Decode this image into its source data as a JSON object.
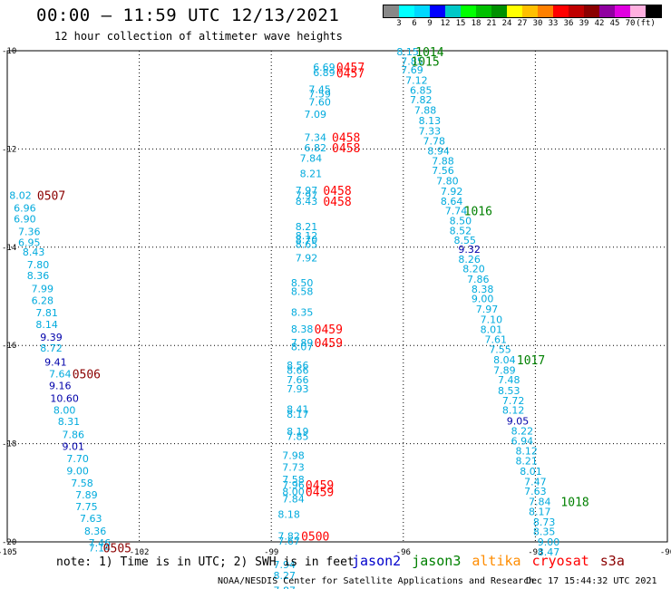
{
  "header": {
    "title": "00:00 – 11:59 UTC 12/13/2021",
    "subtitle": "12 hour collection of altimeter wave heights"
  },
  "colorbar": {
    "colors": [
      "#888888",
      "#00ffff",
      "#00d8ff",
      "#0000ff",
      "#00c8c8",
      "#00ff00",
      "#00c000",
      "#009000",
      "#ffff00",
      "#ffc000",
      "#ff8000",
      "#ff0000",
      "#c00000",
      "#8b0000",
      "#9000a0",
      "#e000e0",
      "#ffb0e0",
      "#000000"
    ],
    "labels": [
      "3",
      "6",
      "9",
      "12",
      "15",
      "18",
      "21",
      "24",
      "27",
      "30",
      "33",
      "36",
      "39",
      "42",
      "45",
      "70",
      "(ft)"
    ]
  },
  "footer": {
    "note": "note: 1) Time is in UTC; 2) SWH is in feet",
    "missions": [
      {
        "name": "jason2",
        "color": "#0000cc"
      },
      {
        "name": "jason3",
        "color": "#008000"
      },
      {
        "name": "altika",
        "color": "#ff8c00"
      },
      {
        "name": "cryosat",
        "color": "#ff0000"
      },
      {
        "name": "s3a",
        "color": "#8b0000"
      }
    ],
    "credit": "NOAA/NESDIS Center for Satellite Applications and Research",
    "timestamp": "Dec 17 15:44:32 UTC 2021"
  },
  "chart_data": {
    "type": "scatter",
    "xlim": [
      -105,
      -90
    ],
    "ylim": [
      -20,
      -10
    ],
    "xticks": [
      "-105",
      "-102",
      "-99",
      "-96",
      "-93",
      "-90"
    ],
    "yticks": [
      "-10",
      "-12",
      "-14",
      "-16",
      "-18",
      "-20"
    ],
    "grid": true,
    "value_colors": {
      "default": "#00aadd",
      "dark_blue": "#0000aa",
      "time_cryosat": "#ff0000",
      "time_jason3": "#008000",
      "time_s3a": "#8b0000"
    },
    "points": [
      {
        "lon": -104.7,
        "lat": -12.94,
        "v": "8.02",
        "c": "default"
      },
      {
        "lon": -104.6,
        "lat": -13.2,
        "v": "6.96",
        "c": "default"
      },
      {
        "lon": -104.6,
        "lat": -13.42,
        "v": "6.90",
        "c": "default"
      },
      {
        "lon": -104.5,
        "lat": -13.68,
        "v": "7.36",
        "c": "default"
      },
      {
        "lon": -104.5,
        "lat": -13.9,
        "v": "6.95",
        "c": "default"
      },
      {
        "lon": -104.4,
        "lat": -14.1,
        "v": "8.43",
        "c": "default"
      },
      {
        "lon": -104.3,
        "lat": -14.35,
        "v": "7.80",
        "c": "default"
      },
      {
        "lon": -104.3,
        "lat": -14.58,
        "v": "8.36",
        "c": "default"
      },
      {
        "lon": -104.2,
        "lat": -14.84,
        "v": "7.99",
        "c": "default"
      },
      {
        "lon": -104.2,
        "lat": -15.08,
        "v": "6.28",
        "c": "default"
      },
      {
        "lon": -104.1,
        "lat": -15.33,
        "v": "7.81",
        "c": "default"
      },
      {
        "lon": -104.1,
        "lat": -15.57,
        "v": "8.14",
        "c": "default"
      },
      {
        "lon": -104.0,
        "lat": -15.83,
        "v": "9.39",
        "c": "dark_blue"
      },
      {
        "lon": -104.0,
        "lat": -16.05,
        "v": "8.72",
        "c": "default"
      },
      {
        "lon": -103.9,
        "lat": -16.34,
        "v": "9.41",
        "c": "dark_blue"
      },
      {
        "lon": -103.8,
        "lat": -16.58,
        "v": "7.64",
        "c": "default"
      },
      {
        "lon": -103.8,
        "lat": -16.82,
        "v": "9.16",
        "c": "dark_blue"
      },
      {
        "lon": -103.7,
        "lat": -17.08,
        "v": "10.60",
        "c": "dark_blue"
      },
      {
        "lon": -103.7,
        "lat": -17.32,
        "v": "8.00",
        "c": "default"
      },
      {
        "lon": -103.6,
        "lat": -17.55,
        "v": "8.31",
        "c": "default"
      },
      {
        "lon": -103.5,
        "lat": -17.81,
        "v": "7.86",
        "c": "default"
      },
      {
        "lon": -103.5,
        "lat": -18.05,
        "v": "9.01",
        "c": "dark_blue"
      },
      {
        "lon": -103.4,
        "lat": -18.3,
        "v": "7.70",
        "c": "default"
      },
      {
        "lon": -103.4,
        "lat": -18.55,
        "v": "9.00",
        "c": "default"
      },
      {
        "lon": -103.3,
        "lat": -18.8,
        "v": "7.58",
        "c": "default"
      },
      {
        "lon": -103.2,
        "lat": -19.04,
        "v": "7.89",
        "c": "default"
      },
      {
        "lon": -103.2,
        "lat": -19.28,
        "v": "7.75",
        "c": "default"
      },
      {
        "lon": -103.1,
        "lat": -19.52,
        "v": "7.63",
        "c": "default"
      },
      {
        "lon": -103.0,
        "lat": -19.78,
        "v": "8.36",
        "c": "default"
      },
      {
        "lon": -102.9,
        "lat": -20.02,
        "v": "7.46",
        "c": "default"
      },
      {
        "lon": -102.9,
        "lat": -20.12,
        "v": "7.14",
        "c": "default"
      },
      {
        "lon": -97.8,
        "lat": -10.33,
        "v": "6.69",
        "c": "default"
      },
      {
        "lon": -97.8,
        "lat": -10.44,
        "v": "6.89",
        "c": "default"
      },
      {
        "lon": -97.9,
        "lat": -10.78,
        "v": "7.45",
        "c": "default"
      },
      {
        "lon": -97.9,
        "lat": -10.88,
        "v": "7.59",
        "c": "default"
      },
      {
        "lon": -97.9,
        "lat": -11.04,
        "v": "7.60",
        "c": "default"
      },
      {
        "lon": -98.0,
        "lat": -11.29,
        "v": "7.09",
        "c": "default"
      },
      {
        "lon": -98.0,
        "lat": -11.76,
        "v": "7.34",
        "c": "default"
      },
      {
        "lon": -98.0,
        "lat": -11.97,
        "v": "6.82",
        "c": "default"
      },
      {
        "lon": -98.1,
        "lat": -12.19,
        "v": "7.84",
        "c": "default"
      },
      {
        "lon": -98.1,
        "lat": -12.5,
        "v": "8.21",
        "c": "default"
      },
      {
        "lon": -98.2,
        "lat": -12.84,
        "v": "7.97",
        "c": "default"
      },
      {
        "lon": -98.2,
        "lat": -12.94,
        "v": "7.97",
        "c": "default"
      },
      {
        "lon": -98.2,
        "lat": -13.06,
        "v": "8.43",
        "c": "default"
      },
      {
        "lon": -98.2,
        "lat": -13.58,
        "v": "8.21",
        "c": "default"
      },
      {
        "lon": -98.2,
        "lat": -13.76,
        "v": "8.12",
        "c": "default"
      },
      {
        "lon": -98.2,
        "lat": -13.85,
        "v": "8.70",
        "c": "default"
      },
      {
        "lon": -98.2,
        "lat": -13.94,
        "v": "8.65",
        "c": "default"
      },
      {
        "lon": -98.2,
        "lat": -14.22,
        "v": "7.92",
        "c": "default"
      },
      {
        "lon": -98.3,
        "lat": -14.72,
        "v": "8.50",
        "c": "default"
      },
      {
        "lon": -98.3,
        "lat": -14.9,
        "v": "8.58",
        "c": "default"
      },
      {
        "lon": -98.3,
        "lat": -15.32,
        "v": "8.35",
        "c": "default"
      },
      {
        "lon": -98.3,
        "lat": -15.66,
        "v": "8.38",
        "c": "default"
      },
      {
        "lon": -98.3,
        "lat": -15.94,
        "v": "7.89",
        "c": "default"
      },
      {
        "lon": -98.3,
        "lat": -16.02,
        "v": "8.07",
        "c": "default"
      },
      {
        "lon": -98.4,
        "lat": -16.4,
        "v": "8.56",
        "c": "default"
      },
      {
        "lon": -98.4,
        "lat": -16.5,
        "v": "8.66",
        "c": "default"
      },
      {
        "lon": -98.4,
        "lat": -16.7,
        "v": "7.66",
        "c": "default"
      },
      {
        "lon": -98.4,
        "lat": -16.88,
        "v": "7.93",
        "c": "default"
      },
      {
        "lon": -98.4,
        "lat": -17.3,
        "v": "8.41",
        "c": "default"
      },
      {
        "lon": -98.4,
        "lat": -17.4,
        "v": "8.17",
        "c": "default"
      },
      {
        "lon": -98.4,
        "lat": -17.75,
        "v": "8.19",
        "c": "default"
      },
      {
        "lon": -98.4,
        "lat": -17.85,
        "v": "7.85",
        "c": "default"
      },
      {
        "lon": -98.5,
        "lat": -18.24,
        "v": "7.98",
        "c": "default"
      },
      {
        "lon": -98.5,
        "lat": -18.48,
        "v": "7.73",
        "c": "default"
      },
      {
        "lon": -98.5,
        "lat": -18.73,
        "v": "7.58",
        "c": "default"
      },
      {
        "lon": -98.5,
        "lat": -18.84,
        "v": "7.96",
        "c": "default"
      },
      {
        "lon": -98.5,
        "lat": -18.98,
        "v": "8.00",
        "c": "default"
      },
      {
        "lon": -98.5,
        "lat": -19.12,
        "v": "7.84",
        "c": "default"
      },
      {
        "lon": -98.6,
        "lat": -19.44,
        "v": "8.18",
        "c": "default"
      },
      {
        "lon": -98.6,
        "lat": -19.88,
        "v": "7.82",
        "c": "default"
      },
      {
        "lon": -98.6,
        "lat": -19.98,
        "v": "7.67",
        "c": "default"
      },
      {
        "lon": -98.7,
        "lat": -20.46,
        "v": "7.94",
        "c": "default"
      },
      {
        "lon": -98.7,
        "lat": -20.68,
        "v": "8.27",
        "c": "default"
      },
      {
        "lon": -98.7,
        "lat": -20.99,
        "v": "7.87",
        "c": "default"
      },
      {
        "lon": -95.9,
        "lat": -10.02,
        "v": "8.15",
        "c": "default"
      },
      {
        "lon": -95.8,
        "lat": -10.21,
        "v": "7.85",
        "c": "default"
      },
      {
        "lon": -95.8,
        "lat": -10.39,
        "v": "7.69",
        "c": "default"
      },
      {
        "lon": -95.7,
        "lat": -10.6,
        "v": "7.12",
        "c": "default"
      },
      {
        "lon": -95.6,
        "lat": -10.8,
        "v": "6.85",
        "c": "default"
      },
      {
        "lon": -95.6,
        "lat": -11.0,
        "v": "7.82",
        "c": "default"
      },
      {
        "lon": -95.5,
        "lat": -11.21,
        "v": "7.88",
        "c": "default"
      },
      {
        "lon": -95.4,
        "lat": -11.42,
        "v": "8.13",
        "c": "default"
      },
      {
        "lon": -95.4,
        "lat": -11.63,
        "v": "7.33",
        "c": "default"
      },
      {
        "lon": -95.3,
        "lat": -11.84,
        "v": "7.78",
        "c": "default"
      },
      {
        "lon": -95.2,
        "lat": -12.04,
        "v": "8.94",
        "c": "default"
      },
      {
        "lon": -95.1,
        "lat": -12.24,
        "v": "7.88",
        "c": "default"
      },
      {
        "lon": -95.1,
        "lat": -12.44,
        "v": "7.56",
        "c": "default"
      },
      {
        "lon": -95.0,
        "lat": -12.65,
        "v": "7.80",
        "c": "default"
      },
      {
        "lon": -94.9,
        "lat": -12.86,
        "v": "7.92",
        "c": "default"
      },
      {
        "lon": -94.9,
        "lat": -13.06,
        "v": "8.64",
        "c": "default"
      },
      {
        "lon": -94.8,
        "lat": -13.26,
        "v": "7.74",
        "c": "default"
      },
      {
        "lon": -94.7,
        "lat": -13.46,
        "v": "8.50",
        "c": "default"
      },
      {
        "lon": -94.7,
        "lat": -13.66,
        "v": "8.52",
        "c": "default"
      },
      {
        "lon": -94.6,
        "lat": -13.86,
        "v": "8.55",
        "c": "default"
      },
      {
        "lon": -94.5,
        "lat": -14.04,
        "v": "9.32",
        "c": "dark_blue"
      },
      {
        "lon": -94.5,
        "lat": -14.24,
        "v": "8.26",
        "c": "default"
      },
      {
        "lon": -94.4,
        "lat": -14.44,
        "v": "8.20",
        "c": "default"
      },
      {
        "lon": -94.3,
        "lat": -14.65,
        "v": "7.86",
        "c": "default"
      },
      {
        "lon": -94.2,
        "lat": -14.85,
        "v": "8.38",
        "c": "default"
      },
      {
        "lon": -94.2,
        "lat": -15.05,
        "v": "9.00",
        "c": "default"
      },
      {
        "lon": -94.1,
        "lat": -15.26,
        "v": "7.97",
        "c": "default"
      },
      {
        "lon": -94.0,
        "lat": -15.47,
        "v": "7.10",
        "c": "default"
      },
      {
        "lon": -94.0,
        "lat": -15.67,
        "v": "8.01",
        "c": "default"
      },
      {
        "lon": -93.9,
        "lat": -15.88,
        "v": "7.61",
        "c": "default"
      },
      {
        "lon": -93.8,
        "lat": -16.08,
        "v": "7.55",
        "c": "default"
      },
      {
        "lon": -93.7,
        "lat": -16.29,
        "v": "8.04",
        "c": "default"
      },
      {
        "lon": -93.7,
        "lat": -16.5,
        "v": "7.89",
        "c": "default"
      },
      {
        "lon": -93.6,
        "lat": -16.7,
        "v": "7.48",
        "c": "default"
      },
      {
        "lon": -93.6,
        "lat": -16.92,
        "v": "8.53",
        "c": "default"
      },
      {
        "lon": -93.5,
        "lat": -17.12,
        "v": "7.72",
        "c": "default"
      },
      {
        "lon": -93.5,
        "lat": -17.32,
        "v": "8.12",
        "c": "default"
      },
      {
        "lon": -93.4,
        "lat": -17.54,
        "v": "9.05",
        "c": "dark_blue"
      },
      {
        "lon": -93.3,
        "lat": -17.74,
        "v": "8.22",
        "c": "default"
      },
      {
        "lon": -93.3,
        "lat": -17.94,
        "v": "6.94",
        "c": "default"
      },
      {
        "lon": -93.2,
        "lat": -18.15,
        "v": "8.12",
        "c": "default"
      },
      {
        "lon": -93.2,
        "lat": -18.35,
        "v": "8.21",
        "c": "default"
      },
      {
        "lon": -93.1,
        "lat": -18.56,
        "v": "8.01",
        "c": "default"
      },
      {
        "lon": -93.0,
        "lat": -18.77,
        "v": "7.47",
        "c": "default"
      },
      {
        "lon": -93.0,
        "lat": -18.97,
        "v": "7.63",
        "c": "default"
      },
      {
        "lon": -92.9,
        "lat": -19.18,
        "v": "7.84",
        "c": "default"
      },
      {
        "lon": -92.9,
        "lat": -19.38,
        "v": "8.17",
        "c": "default"
      },
      {
        "lon": -92.8,
        "lat": -19.59,
        "v": "8.73",
        "c": "default"
      },
      {
        "lon": -92.8,
        "lat": -19.79,
        "v": "8.35",
        "c": "default"
      },
      {
        "lon": -92.7,
        "lat": -20.0,
        "v": "9.00",
        "c": "default"
      },
      {
        "lon": -92.7,
        "lat": -20.2,
        "v": "8.47",
        "c": "default"
      }
    ],
    "time_labels": [
      {
        "lon": -97.2,
        "lat": -10.33,
        "t": "0457",
        "c": "time_cryosat"
      },
      {
        "lon": -97.2,
        "lat": -10.45,
        "t": "0457",
        "c": "time_cryosat"
      },
      {
        "lon": -97.3,
        "lat": -11.76,
        "t": "0458",
        "c": "time_cryosat"
      },
      {
        "lon": -97.3,
        "lat": -11.97,
        "t": "0458",
        "c": "time_cryosat"
      },
      {
        "lon": -97.5,
        "lat": -12.84,
        "t": "0458",
        "c": "time_cryosat"
      },
      {
        "lon": -97.5,
        "lat": -13.06,
        "t": "0458",
        "c": "time_cryosat"
      },
      {
        "lon": -97.7,
        "lat": -15.66,
        "t": "0459",
        "c": "time_cryosat"
      },
      {
        "lon": -97.7,
        "lat": -15.94,
        "t": "0459",
        "c": "time_cryosat"
      },
      {
        "lon": -97.9,
        "lat": -18.84,
        "t": "0459",
        "c": "time_cryosat"
      },
      {
        "lon": -97.9,
        "lat": -18.98,
        "t": "0459",
        "c": "time_cryosat"
      },
      {
        "lon": -98.0,
        "lat": -19.88,
        "t": "0500",
        "c": "time_cryosat"
      },
      {
        "lon": -95.4,
        "lat": -10.02,
        "t": "1014",
        "c": "time_jason3"
      },
      {
        "lon": -95.5,
        "lat": -10.21,
        "t": "1015",
        "c": "time_jason3"
      },
      {
        "lon": -94.3,
        "lat": -13.26,
        "t": "1016",
        "c": "time_jason3"
      },
      {
        "lon": -93.1,
        "lat": -16.29,
        "t": "1017",
        "c": "time_jason3"
      },
      {
        "lon": -92.1,
        "lat": -19.18,
        "t": "1018",
        "c": "time_jason3"
      },
      {
        "lon": -104.0,
        "lat": -12.94,
        "t": "0507",
        "c": "time_s3a"
      },
      {
        "lon": -103.2,
        "lat": -16.58,
        "t": "0506",
        "c": "time_s3a"
      },
      {
        "lon": -102.5,
        "lat": -20.12,
        "t": "0505",
        "c": "time_s3a"
      }
    ]
  }
}
